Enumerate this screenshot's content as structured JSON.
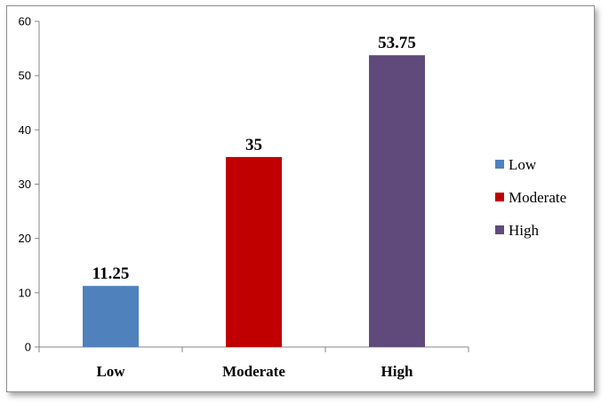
{
  "chart_data": {
    "type": "bar",
    "categories": [
      "Low",
      "Moderate",
      "High"
    ],
    "values": [
      11.25,
      35,
      53.75
    ],
    "data_labels": [
      "11.25",
      "35",
      "53.75"
    ],
    "colors": [
      "#4f81bd",
      "#c00000",
      "#604a7b"
    ],
    "ylim": [
      0,
      60
    ],
    "yticks": [
      0,
      10,
      20,
      30,
      40,
      50,
      60
    ],
    "title": "",
    "xlabel": "",
    "ylabel": "",
    "grid": false,
    "legend": {
      "position": "right",
      "entries": [
        "Low",
        "Moderate",
        "High"
      ]
    }
  }
}
